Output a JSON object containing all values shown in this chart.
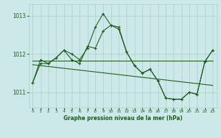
{
  "title": "Graphe pression niveau de la mer (hPa)",
  "bg_color": "#cce8e8",
  "grid_color": "#aacccc",
  "line_color": "#1a5c1a",
  "xlim": [
    -0.5,
    23.5
  ],
  "ylim": [
    1010.6,
    1013.3
  ],
  "yticks": [
    1011,
    1012,
    1013
  ],
  "xticks": [
    0,
    1,
    2,
    3,
    4,
    5,
    6,
    7,
    8,
    9,
    10,
    11,
    12,
    13,
    14,
    15,
    16,
    17,
    18,
    19,
    20,
    21,
    22,
    23
  ],
  "series1_x": [
    0,
    1,
    2,
    3,
    4,
    5,
    6,
    7,
    8,
    9,
    10,
    11,
    12,
    13,
    14,
    15,
    16,
    17,
    18,
    19,
    20,
    21,
    22,
    23
  ],
  "series1_y": [
    1011.25,
    1011.85,
    1011.75,
    1011.9,
    1012.1,
    1011.85,
    1011.75,
    1012.2,
    1012.15,
    1012.6,
    1012.75,
    1012.7,
    1012.05,
    1011.7,
    1011.5,
    1011.6,
    1011.3,
    1010.85,
    1010.82,
    1010.82,
    1011.0,
    1010.95,
    1011.8,
    1012.1
  ],
  "series2_x": [
    0,
    1,
    2,
    3,
    4,
    5,
    6,
    7,
    8,
    9,
    10,
    11,
    12,
    13,
    14,
    15,
    16,
    17,
    18,
    19,
    20,
    21,
    22,
    23
  ],
  "series2_y": [
    1011.25,
    1011.75,
    1011.75,
    1011.9,
    1012.1,
    1012.0,
    1011.85,
    1012.15,
    1012.7,
    1013.05,
    1012.75,
    1012.65,
    1012.05,
    1011.7,
    1011.5,
    1011.6,
    1011.3,
    1010.85,
    1010.82,
    1010.82,
    1011.0,
    1010.95,
    1011.8,
    1012.1
  ],
  "series3_x": [
    0,
    23
  ],
  "series3_y": [
    1011.82,
    1011.82
  ],
  "series4_x": [
    0,
    23
  ],
  "series4_y": [
    1011.72,
    1011.18
  ]
}
